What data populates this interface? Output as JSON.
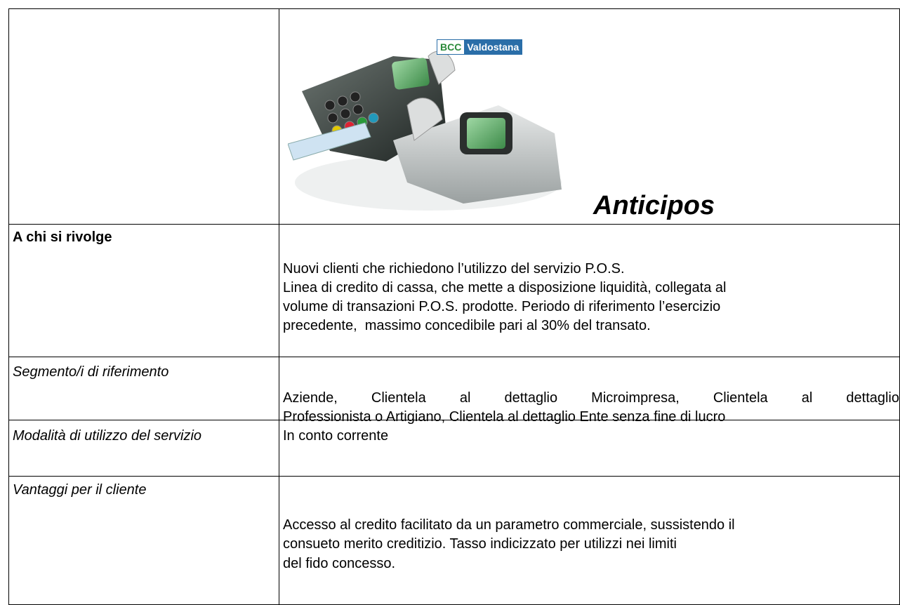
{
  "header": {
    "logo_mark": "BCC",
    "logo_name": "Valdostana",
    "title": "Anticipos"
  },
  "table": {
    "rows": [
      [
        "A chi si rivolge",
        [
          "Nuovi clienti che richiedono l’utilizzo del servizio P.O.S.",
          "Linea di credito di cassa, che mette a disposizione liquidità, collegata al",
          "volume di transazioni P.O.S. prodotte. Periodo di riferimento l’esercizio",
          "precedente,  massimo concedibile pari al 30% del transato."
        ]
      ],
      [
        "Segmento/i di riferimento",
        [
          "Aziende, Clientela al dettaglio Microimpresa, Clientela al dettaglio",
          "Professionista o Artigiano, Clientela al dettaglio Ente senza fine di lucro"
        ]
      ],
      [
        "Modalità di utilizzo del servizio",
        [
          "In conto corrente"
        ]
      ],
      [
        "Vantaggi per il cliente",
        [
          "Accesso al credito facilitato da un parametro commerciale, sussistendo il",
          "consueto merito creditizio. Tasso indicizzato per utilizzi nei limiti",
          "del fido concesso."
        ]
      ]
    ]
  }
}
